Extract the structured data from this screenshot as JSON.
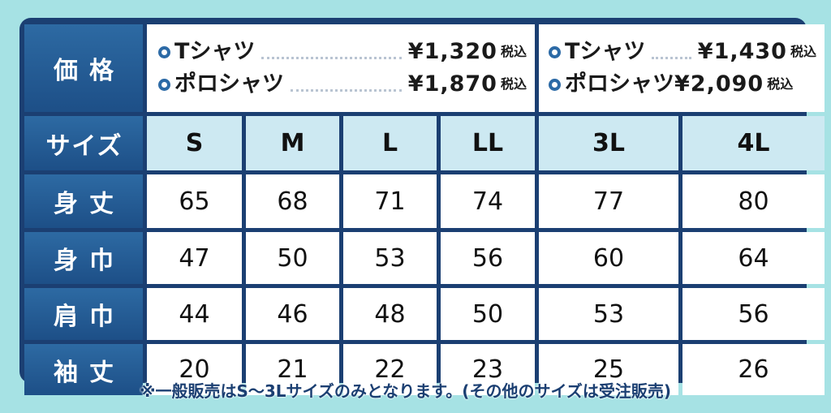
{
  "row_labels": {
    "price": "価格",
    "size": "サイズ",
    "body_length": "身丈",
    "body_width": "身巾",
    "shoulder_width": "肩巾",
    "sleeve_length": "袖丈"
  },
  "prices": {
    "regular": [
      {
        "item": "Tシャツ",
        "price": "¥1,320",
        "tax": "税込"
      },
      {
        "item": "ポロシャツ",
        "price": "¥1,870",
        "tax": "税込"
      }
    ],
    "large": [
      {
        "item": "Tシャツ",
        "price": "¥1,430",
        "tax": "税込"
      },
      {
        "item": "ポロシャツ",
        "price": "¥2,090",
        "tax": "税込"
      }
    ]
  },
  "sizes": [
    "S",
    "M",
    "L",
    "LL",
    "3L",
    "4L"
  ],
  "measurements": {
    "body_length": [
      "65",
      "68",
      "71",
      "74",
      "77",
      "80"
    ],
    "body_width": [
      "47",
      "50",
      "53",
      "56",
      "60",
      "64"
    ],
    "shoulder_width": [
      "44",
      "46",
      "48",
      "50",
      "53",
      "56"
    ],
    "sleeve_length": [
      "20",
      "21",
      "22",
      "23",
      "25",
      "26"
    ]
  },
  "note": "※一般販売はS～3Lサイズのみとなります。(その他のサイズは受注販売)",
  "colors": {
    "navy": "#1b3f72",
    "header_blue": "#2d6aa3",
    "size_row": "#cde9f2",
    "background": "#a6e2e4"
  }
}
